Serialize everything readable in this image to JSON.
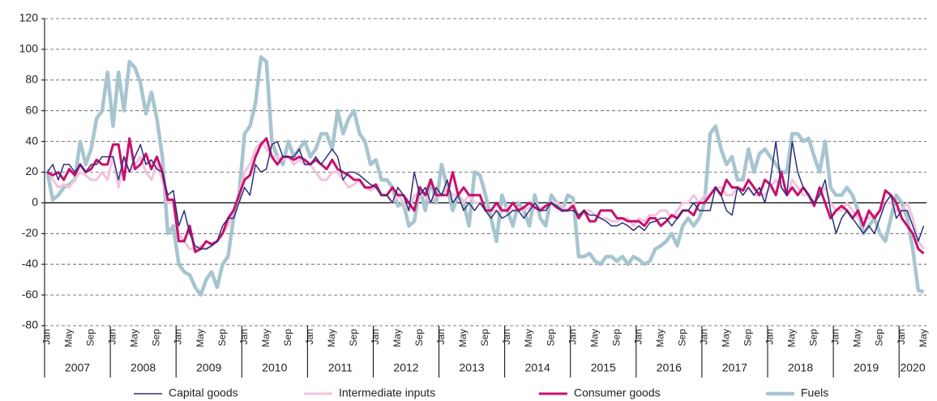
{
  "chart_data": {
    "type": "line",
    "categories": [
      "Jan",
      null,
      null,
      null,
      "May",
      null,
      null,
      null,
      "Sep",
      null,
      null,
      null,
      "Jan",
      null,
      null,
      null,
      "May",
      null,
      null,
      null,
      "Sep",
      null,
      null,
      null,
      "Jan",
      null,
      null,
      null,
      "May",
      null,
      null,
      null,
      "Sep",
      null,
      null,
      null,
      "Jan",
      null,
      null,
      null,
      "May",
      null,
      null,
      null,
      "Sep",
      null,
      null,
      null,
      "Jan",
      null,
      null,
      null,
      "May",
      null,
      null,
      null,
      "Sep",
      null,
      null,
      null,
      "Jan",
      null,
      null,
      null,
      "May",
      null,
      null,
      null,
      "Sep",
      null,
      null,
      null,
      "Jan",
      null,
      null,
      null,
      "May",
      null,
      null,
      null,
      "Sep",
      null,
      null,
      null,
      "Jan",
      null,
      null,
      null,
      "May",
      null,
      null,
      null,
      "Sep",
      null,
      null,
      null,
      "Jan",
      null,
      null,
      null,
      "May",
      null,
      null,
      null,
      "Sep",
      null,
      null,
      null,
      "Jan",
      null,
      null,
      null,
      "May",
      null,
      null,
      null,
      "Sep",
      null,
      null,
      null,
      "Jan",
      null,
      null,
      null,
      "May",
      null,
      null,
      null,
      "Sep",
      null,
      null,
      null,
      "Jan",
      null,
      null,
      null,
      "May",
      null,
      null,
      null,
      "Sep",
      null,
      null,
      null,
      "Jan",
      null,
      null,
      null,
      "May",
      null,
      null,
      null,
      "Sep",
      null,
      null,
      null,
      "Jan",
      null,
      null,
      null,
      "May"
    ],
    "years": [
      "2007",
      "2008",
      "2009",
      "2010",
      "2011",
      "2012",
      "2013",
      "2014",
      "2015",
      "2016",
      "2017",
      "2018",
      "2019",
      "2020"
    ],
    "ylim": [
      -80,
      120
    ],
    "yticks": [
      -80,
      -60,
      -40,
      -20,
      0,
      20,
      40,
      60,
      80,
      100,
      120
    ],
    "grid": true,
    "series": [
      {
        "name": "Capital goods",
        "color": "#2b2f7a",
        "width": 1.5,
        "values": [
          20,
          25,
          15,
          25,
          25,
          20,
          25,
          20,
          25,
          25,
          30,
          30,
          30,
          15,
          30,
          20,
          30,
          38,
          25,
          28,
          22,
          20,
          5,
          8,
          -15,
          -5,
          -20,
          -28,
          -30,
          -30,
          -28,
          -25,
          -15,
          -10,
          -10,
          0,
          10,
          5,
          25,
          20,
          22,
          38,
          40,
          30,
          30,
          30,
          35,
          25,
          25,
          30,
          25,
          30,
          35,
          30,
          15,
          20,
          20,
          18,
          15,
          12,
          10,
          5,
          5,
          0,
          10,
          5,
          -5,
          20,
          5,
          10,
          0,
          10,
          5,
          15,
          0,
          5,
          -5,
          0,
          -5,
          0,
          -5,
          -10,
          -5,
          -10,
          -8,
          -5,
          -5,
          -10,
          -5,
          0,
          -5,
          -5,
          0,
          -2,
          -5,
          -5,
          -5,
          -8,
          -5,
          -8,
          -8,
          -10,
          -12,
          -15,
          -15,
          -13,
          -15,
          -18,
          -15,
          -18,
          -13,
          -12,
          -10,
          -10,
          -15,
          -10,
          -5,
          -5,
          0,
          -5,
          -5,
          -5,
          10,
          5,
          -5,
          -8,
          10,
          5,
          10,
          5,
          10,
          0,
          15,
          40,
          10,
          5,
          40,
          20,
          10,
          5,
          0,
          5,
          15,
          -5,
          -20,
          -10,
          -5,
          -10,
          -15,
          -20,
          -15,
          -20,
          -10,
          0,
          5,
          -10,
          -5,
          -5,
          -15,
          -25,
          -15
        ]
      },
      {
        "name": "Intermediate inputs",
        "color": "#f2c4de",
        "width": 3,
        "values": [
          22,
          15,
          10,
          12,
          10,
          15,
          20,
          18,
          15,
          15,
          20,
          15,
          30,
          10,
          30,
          20,
          25,
          30,
          20,
          15,
          25,
          15,
          0,
          0,
          -20,
          -25,
          -30,
          -30,
          -28,
          -30,
          -28,
          -25,
          -20,
          -15,
          -5,
          5,
          20,
          25,
          35,
          40,
          35,
          30,
          30,
          28,
          30,
          25,
          28,
          25,
          25,
          20,
          15,
          15,
          20,
          20,
          15,
          10,
          12,
          15,
          10,
          8,
          10,
          5,
          5,
          0,
          5,
          0,
          -5,
          5,
          5,
          5,
          0,
          5,
          5,
          10,
          5,
          5,
          0,
          5,
          0,
          0,
          -5,
          -5,
          -5,
          -5,
          -3,
          -5,
          -3,
          -5,
          -3,
          0,
          -3,
          -3,
          0,
          0,
          -2,
          -5,
          0,
          -8,
          -5,
          -5,
          -8,
          -10,
          -10,
          -12,
          -12,
          -10,
          -10,
          -15,
          -10,
          -12,
          -8,
          -8,
          -5,
          -5,
          -10,
          -5,
          0,
          0,
          5,
          0,
          5,
          5,
          10,
          10,
          5,
          5,
          10,
          8,
          10,
          5,
          5,
          5,
          10,
          15,
          10,
          5,
          15,
          10,
          5,
          5,
          0,
          5,
          10,
          0,
          -5,
          -5,
          0,
          -5,
          -10,
          -10,
          -10,
          -8,
          -5,
          0,
          0,
          -5,
          -5,
          0,
          -10,
          -25,
          -30
        ]
      },
      {
        "name": "Consumer goods",
        "color": "#c8106e",
        "width": 3,
        "values": [
          20,
          18,
          20,
          15,
          22,
          18,
          25,
          20,
          22,
          28,
          25,
          25,
          38,
          38,
          15,
          42,
          22,
          25,
          32,
          22,
          30,
          20,
          2,
          2,
          -25,
          -25,
          -15,
          -32,
          -30,
          -25,
          -27,
          -25,
          -20,
          -10,
          -5,
          5,
          15,
          18,
          30,
          38,
          42,
          30,
          25,
          30,
          30,
          28,
          30,
          28,
          25,
          28,
          25,
          22,
          28,
          22,
          20,
          18,
          15,
          15,
          10,
          10,
          12,
          5,
          5,
          10,
          5,
          5,
          0,
          -5,
          10,
          5,
          15,
          5,
          5,
          5,
          20,
          5,
          10,
          5,
          5,
          5,
          -5,
          -5,
          0,
          -5,
          -5,
          0,
          -5,
          -3,
          0,
          -3,
          -5,
          -2,
          0,
          -3,
          -5,
          -5,
          -2,
          -10,
          -5,
          -12,
          -12,
          -5,
          -5,
          -5,
          -10,
          -10,
          -12,
          -12,
          -12,
          -15,
          -10,
          -10,
          -15,
          -12,
          -8,
          -10,
          -5,
          -5,
          -8,
          0,
          0,
          5,
          10,
          5,
          15,
          10,
          10,
          8,
          15,
          10,
          5,
          15,
          12,
          5,
          20,
          5,
          10,
          5,
          10,
          5,
          -2,
          10,
          0,
          -10,
          -5,
          -2,
          -5,
          -10,
          -5,
          -15,
          -5,
          -10,
          -5,
          8,
          5,
          0,
          -10,
          -15,
          -20,
          -30,
          -33
        ]
      },
      {
        "name": "Fuels",
        "color": "#a7c5d0",
        "width": 4.5,
        "values": [
          20,
          2,
          5,
          10,
          12,
          15,
          40,
          25,
          35,
          55,
          60,
          85,
          50,
          85,
          60,
          92,
          88,
          78,
          58,
          72,
          55,
          30,
          -20,
          -15,
          -40,
          -45,
          -47,
          -55,
          -60,
          -50,
          -45,
          -55,
          -40,
          -35,
          -10,
          5,
          45,
          50,
          65,
          95,
          92,
          40,
          30,
          25,
          40,
          30,
          35,
          40,
          30,
          35,
          45,
          45,
          35,
          60,
          45,
          55,
          60,
          45,
          40,
          25,
          28,
          15,
          15,
          10,
          -2,
          0,
          -15,
          -12,
          10,
          -5,
          15,
          0,
          25,
          10,
          -5,
          5,
          0,
          -15,
          20,
          18,
          5,
          -10,
          -25,
          5,
          -5,
          -15,
          0,
          -5,
          -15,
          5,
          -10,
          -15,
          5,
          0,
          -5,
          5,
          3,
          -35,
          -35,
          -33,
          -38,
          -40,
          -35,
          -35,
          -38,
          -35,
          -40,
          -35,
          -37,
          -40,
          -38,
          -30,
          -28,
          -25,
          -20,
          -28,
          -15,
          -10,
          -15,
          -10,
          0,
          45,
          50,
          35,
          25,
          30,
          15,
          15,
          35,
          20,
          32,
          35,
          30,
          25,
          20,
          20,
          45,
          45,
          40,
          42,
          30,
          20,
          40,
          10,
          5,
          5,
          10,
          5,
          -5,
          -20,
          -15,
          -10,
          -20,
          -25,
          -10,
          5,
          0,
          -10,
          -30,
          -57,
          -58
        ]
      }
    ]
  }
}
